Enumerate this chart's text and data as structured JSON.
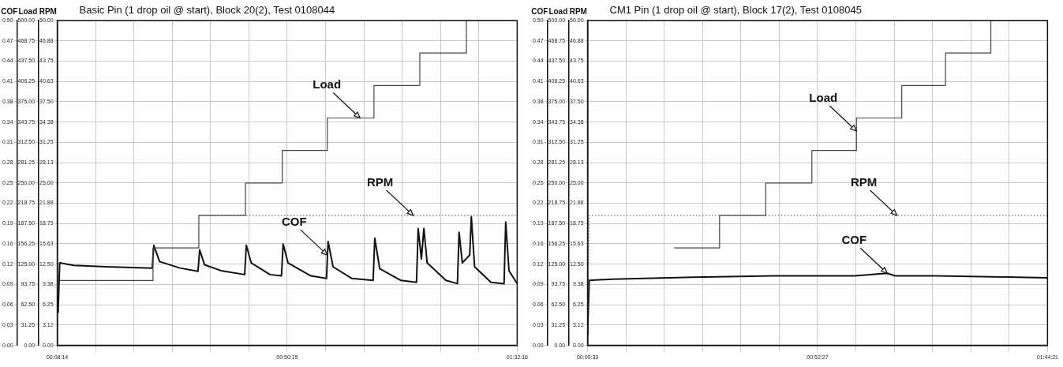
{
  "chart_data": [
    {
      "type": "line",
      "title": "Basic Pin (1 drop oil @ start), Block 20(2), Test 0108044",
      "ylabel": "COF",
      "y2label": "Load",
      "y3label": "RPM",
      "grid": true,
      "xlim": [
        0.1372,
        1.5378
      ],
      "xticks": [
        {
          "value": 0.1372,
          "label": "00:08:14"
        },
        {
          "value": 0.2539,
          "label": null
        },
        {
          "value": 0.3706,
          "label": null
        },
        {
          "value": 0.4873,
          "label": null
        },
        {
          "value": 0.6041,
          "label": null
        },
        {
          "value": 0.7208,
          "label": null
        },
        {
          "value": 0.8375,
          "label": "00:50:15"
        },
        {
          "value": 0.9542,
          "label": null
        },
        {
          "value": 1.0709,
          "label": null
        },
        {
          "value": 1.1876,
          "label": null
        },
        {
          "value": 1.3044,
          "label": null
        },
        {
          "value": 1.4211,
          "label": null
        },
        {
          "value": 1.5378,
          "label": "01:32:16"
        }
      ],
      "ylim": [
        0,
        0.5
      ],
      "yticks": [
        {
          "value": 0,
          "label": "0.00"
        },
        {
          "value": 0.03125,
          "label": "0.03"
        },
        {
          "value": 0.0625,
          "label": "0.06"
        },
        {
          "value": 0.09375,
          "label": "0.09"
        },
        {
          "value": 0.125,
          "label": "0.12"
        },
        {
          "value": 0.15625,
          "label": "0.16"
        },
        {
          "value": 0.1875,
          "label": "0.19"
        },
        {
          "value": 0.21875,
          "label": "0.22"
        },
        {
          "value": 0.25,
          "label": "0.25"
        },
        {
          "value": 0.28125,
          "label": "0.28"
        },
        {
          "value": 0.3125,
          "label": "0.31"
        },
        {
          "value": 0.34375,
          "label": "0.34"
        },
        {
          "value": 0.375,
          "label": "0.38"
        },
        {
          "value": 0.40625,
          "label": "0.41"
        },
        {
          "value": 0.4375,
          "label": "0.44"
        },
        {
          "value": 0.46875,
          "label": "0.47"
        },
        {
          "value": 0.5,
          "label": "0.50"
        }
      ],
      "y2lim": [
        0,
        500
      ],
      "y2ticks": [
        {
          "value": 0,
          "label": "0.00"
        },
        {
          "value": 31.25,
          "label": "31.25"
        },
        {
          "value": 62.5,
          "label": "62.50"
        },
        {
          "value": 93.75,
          "label": "93.75"
        },
        {
          "value": 125,
          "label": "125.00"
        },
        {
          "value": 156.25,
          "label": "156.25"
        },
        {
          "value": 187.5,
          "label": "187.50"
        },
        {
          "value": 218.75,
          "label": "218.75"
        },
        {
          "value": 250,
          "label": "250.00"
        },
        {
          "value": 281.25,
          "label": "281.25"
        },
        {
          "value": 312.5,
          "label": "312.50"
        },
        {
          "value": 343.75,
          "label": "343.75"
        },
        {
          "value": 375,
          "label": "375.00"
        },
        {
          "value": 406.25,
          "label": "406.25"
        },
        {
          "value": 437.5,
          "label": "437.50"
        },
        {
          "value": 468.75,
          "label": "468.75"
        },
        {
          "value": 500,
          "label": "500.00"
        }
      ],
      "y3lim": [
        0,
        50
      ],
      "y3ticks": [
        {
          "value": 0,
          "label": "0.00"
        },
        {
          "value": 3.125,
          "label": "3.12"
        },
        {
          "value": 6.25,
          "label": "6.25"
        },
        {
          "value": 9.375,
          "label": "9.38"
        },
        {
          "value": 12.5,
          "label": "12.50"
        },
        {
          "value": 15.625,
          "label": "15.63"
        },
        {
          "value": 18.75,
          "label": "18.75"
        },
        {
          "value": 21.875,
          "label": "21.88"
        },
        {
          "value": 25,
          "label": "25.00"
        },
        {
          "value": 28.125,
          "label": "28.13"
        },
        {
          "value": 31.25,
          "label": "31.25"
        },
        {
          "value": 34.375,
          "label": "34.38"
        },
        {
          "value": 37.5,
          "label": "37.50"
        },
        {
          "value": 40.625,
          "label": "40.63"
        },
        {
          "value": 43.75,
          "label": "43.75"
        },
        {
          "value": 46.875,
          "label": "46.88"
        },
        {
          "value": 50,
          "label": "50.00"
        }
      ],
      "series": [
        {
          "type": "step",
          "axis": "y2",
          "color": "#444444",
          "x": [
            0.1447,
            0.4288,
            0.5683,
            0.7104,
            0.8225,
            0.9596,
            1.1016,
            1.2412,
            1.3832,
            1.5378
          ],
          "values": [
            100,
            150,
            200,
            250,
            300,
            350,
            400,
            450,
            500,
            500
          ]
        },
        {
          "type": "line",
          "axis": "y3",
          "color": "#666666",
          "line_style": "dotted",
          "x": [
            0.5683,
            1.5378
          ],
          "values": [
            20,
            20
          ]
        },
        {
          "type": "line",
          "axis": "y",
          "color": "#111111",
          "x": [
            0.1397,
            0.1447,
            0.187,
            0.2867,
            0.4263,
            0.4313,
            0.4487,
            0.511,
            0.5658,
            0.5708,
            0.5858,
            0.6356,
            0.7079,
            0.7129,
            0.7278,
            0.7851,
            0.82,
            0.825,
            0.8399,
            0.9097,
            0.9571,
            0.962,
            0.977,
            1.0343,
            1.0991,
            1.1041,
            1.119,
            1.1838,
            1.2312,
            1.2362,
            1.2461,
            1.2536,
            1.2636,
            1.3209,
            1.3558,
            1.3608,
            1.3707,
            1.3932,
            1.3981,
            1.4081,
            1.458,
            1.4978,
            1.5028,
            1.5128,
            1.5378
          ],
          "values": [
            0.05,
            0.127,
            0.123,
            0.121,
            0.119,
            0.154,
            0.129,
            0.119,
            0.114,
            0.147,
            0.124,
            0.115,
            0.109,
            0.154,
            0.127,
            0.109,
            0.107,
            0.156,
            0.127,
            0.107,
            0.103,
            0.16,
            0.121,
            0.103,
            0.1,
            0.165,
            0.118,
            0.1,
            0.097,
            0.18,
            0.133,
            0.18,
            0.127,
            0.1,
            0.095,
            0.174,
            0.127,
            0.139,
            0.198,
            0.121,
            0.097,
            0.095,
            0.19,
            0.115,
            0.095
          ]
        }
      ],
      "annotations": [
        {
          "text": "Load",
          "x": 1.0592,
          "y": 0.35
        },
        {
          "text": "RPM",
          "x": 1.2212,
          "y": 0.2
        },
        {
          "text": "COF",
          "x": 0.9596,
          "y": 0.139
        }
      ]
    },
    {
      "type": "line",
      "title": "CM1 Pin (1 drop oil @ start), Block 17(2), Test 0108045",
      "ylabel": "COF",
      "y2label": "Load",
      "y3label": "RPM",
      "grid": true,
      "xlim": [
        0.0092,
        1.7392
      ],
      "xticks": [
        {
          "value": 0.0092,
          "label": "00:00:33"
        },
        {
          "value": 0.1534,
          "label": null
        },
        {
          "value": 0.2975,
          "label": null
        },
        {
          "value": 0.4417,
          "label": null
        },
        {
          "value": 0.5859,
          "label": null
        },
        {
          "value": 0.73,
          "label": null
        },
        {
          "value": 0.8742,
          "label": "00:52:27"
        },
        {
          "value": 1.0184,
          "label": null
        },
        {
          "value": 1.1625,
          "label": null
        },
        {
          "value": 1.3067,
          "label": null
        },
        {
          "value": 1.4509,
          "label": null
        },
        {
          "value": 1.595,
          "label": null
        },
        {
          "value": 1.7392,
          "label": "01:44:21"
        }
      ],
      "ylim": [
        0,
        0.5
      ],
      "yticks": [
        {
          "value": 0,
          "label": "0.00"
        },
        {
          "value": 0.03125,
          "label": "0.03"
        },
        {
          "value": 0.0625,
          "label": "0.06"
        },
        {
          "value": 0.09375,
          "label": "0.09"
        },
        {
          "value": 0.125,
          "label": "0.12"
        },
        {
          "value": 0.15625,
          "label": "0.16"
        },
        {
          "value": 0.1875,
          "label": "0.19"
        },
        {
          "value": 0.21875,
          "label": "0.22"
        },
        {
          "value": 0.25,
          "label": "0.25"
        },
        {
          "value": 0.28125,
          "label": "0.28"
        },
        {
          "value": 0.3125,
          "label": "0.31"
        },
        {
          "value": 0.34375,
          "label": "0.34"
        },
        {
          "value": 0.375,
          "label": "0.38"
        },
        {
          "value": 0.40625,
          "label": "0.41"
        },
        {
          "value": 0.4375,
          "label": "0.44"
        },
        {
          "value": 0.46875,
          "label": "0.47"
        },
        {
          "value": 0.5,
          "label": "0.50"
        }
      ],
      "y2lim": [
        0,
        500
      ],
      "y2ticks": [
        {
          "value": 0,
          "label": "0.00"
        },
        {
          "value": 31.25,
          "label": "31.25"
        },
        {
          "value": 62.5,
          "label": "62.50"
        },
        {
          "value": 93.75,
          "label": "93.75"
        },
        {
          "value": 125,
          "label": "125.00"
        },
        {
          "value": 156.25,
          "label": "156.25"
        },
        {
          "value": 187.5,
          "label": "187.50"
        },
        {
          "value": 218.75,
          "label": "218.75"
        },
        {
          "value": 250,
          "label": "250.00"
        },
        {
          "value": 281.25,
          "label": "281.25"
        },
        {
          "value": 312.5,
          "label": "312.50"
        },
        {
          "value": 343.75,
          "label": "343.75"
        },
        {
          "value": 375,
          "label": "375.00"
        },
        {
          "value": 406.25,
          "label": "406.25"
        },
        {
          "value": 437.5,
          "label": "437.50"
        },
        {
          "value": 468.75,
          "label": "468.75"
        },
        {
          "value": 500,
          "label": "500.00"
        }
      ],
      "y3lim": [
        0,
        50
      ],
      "y3ticks": [
        {
          "value": 0,
          "label": "0.00"
        },
        {
          "value": 3.125,
          "label": "3.12"
        },
        {
          "value": 6.25,
          "label": "6.25"
        },
        {
          "value": 9.375,
          "label": "9.38"
        },
        {
          "value": 12.5,
          "label": "12.50"
        },
        {
          "value": 15.625,
          "label": "15.63"
        },
        {
          "value": 18.75,
          "label": "18.75"
        },
        {
          "value": 21.875,
          "label": "21.88"
        },
        {
          "value": 25,
          "label": "25.00"
        },
        {
          "value": 28.125,
          "label": "28.13"
        },
        {
          "value": 31.25,
          "label": "31.25"
        },
        {
          "value": 34.375,
          "label": "34.38"
        },
        {
          "value": 37.5,
          "label": "37.50"
        },
        {
          "value": 40.625,
          "label": "40.63"
        },
        {
          "value": 43.75,
          "label": "43.75"
        },
        {
          "value": 46.875,
          "label": "46.88"
        },
        {
          "value": 50,
          "label": "50.00"
        }
      ],
      "series": [
        {
          "type": "step",
          "axis": "y2",
          "color": "#444444",
          "x": [
            0.3351,
            0.5057,
            0.6793,
            0.8529,
            1.0205,
            1.191,
            1.3556,
            1.5261,
            1.7392
          ],
          "values": [
            150,
            200,
            250,
            300,
            350,
            400,
            450,
            500,
            500
          ]
        },
        {
          "type": "line",
          "axis": "y3",
          "color": "#666666",
          "line_style": "dotted",
          "x": [
            0.0092,
            0.0153,
            1.7392
          ],
          "values": [
            0,
            20,
            20
          ]
        },
        {
          "type": "line",
          "axis": "y",
          "color": "#111111",
          "x": [
            0.0092,
            0.0153,
            0.1006,
            0.4052,
            0.7098,
            1.0144,
            1.1362,
            1.1667,
            1.319,
            1.6236,
            1.7392
          ],
          "values": [
            0.014,
            0.1,
            0.102,
            0.105,
            0.107,
            0.107,
            0.111,
            0.107,
            0.107,
            0.105,
            0.104
          ]
        }
      ],
      "annotations": [
        {
          "text": "Load",
          "x": 1.0205,
          "y": 0.33
        },
        {
          "text": "RPM",
          "x": 1.1728,
          "y": 0.2
        },
        {
          "text": "COF",
          "x": 1.1362,
          "y": 0.111
        }
      ]
    }
  ]
}
